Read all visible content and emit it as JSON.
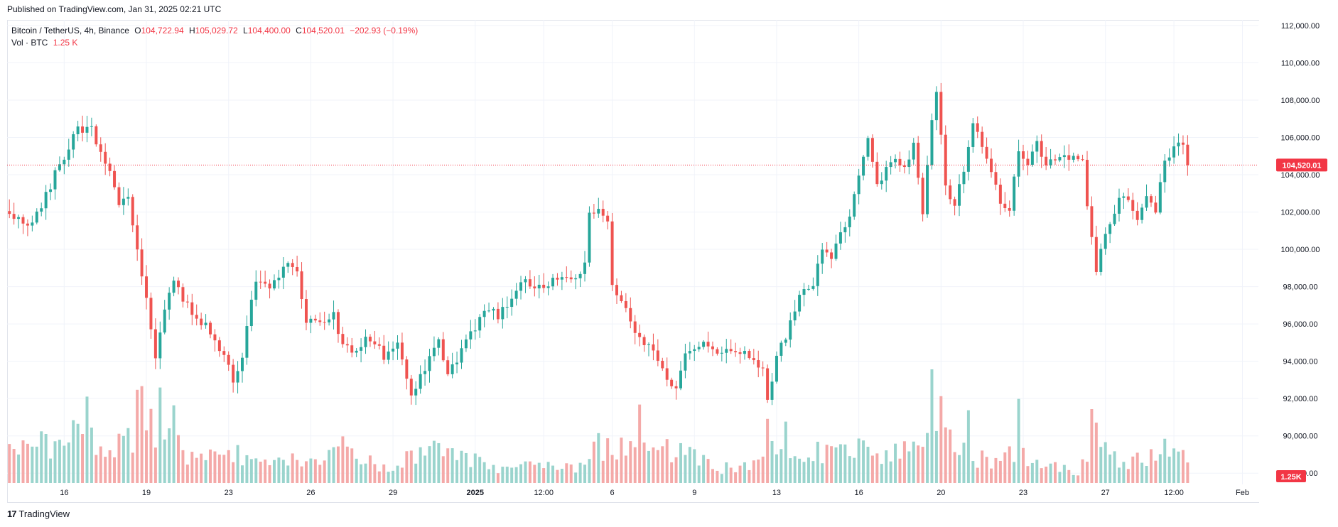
{
  "header": {
    "published": "Published on TradingView.com, Jan 31, 2025 02:21 UTC"
  },
  "legend": {
    "symbol": "Bitcoin / TetherUS, 4h, Binance",
    "o_label": "O",
    "o_value": "104,722.94",
    "h_label": "H",
    "h_value": "105,029.72",
    "l_label": "L",
    "l_value": "104,400.00",
    "c_label": "C",
    "c_value": "104,520.01",
    "change": "−202.93 (−0.19%)",
    "vol_label": "Vol · BTC",
    "vol_value": "1.25 K"
  },
  "footer": {
    "brand": "TradingView",
    "mark": "17"
  },
  "colors": {
    "up": "#26a69a",
    "down": "#ef5350",
    "up_vol": "#9ad4cd",
    "down_vol": "#f4a9a8",
    "grid": "#f0f3fa",
    "price_line": "#f23645"
  },
  "chart_data": {
    "type": "candlestick",
    "interval": "4h",
    "ylim": [
      87400,
      112300
    ],
    "y_ticks": [
      88000,
      90000,
      92000,
      94000,
      96000,
      98000,
      100000,
      102000,
      104000,
      106000,
      108000,
      110000,
      112000
    ],
    "y_tick_labels": [
      "88,000.00",
      "90,000.00",
      "92,000.00",
      "94,000.00",
      "96,000.00",
      "98,000.00",
      "100,000.00",
      "102,000.00",
      "104,000.00",
      "106,000.00",
      "108,000.00",
      "110,000.00",
      "112,000.00"
    ],
    "x_ticks": [
      {
        "index": 12,
        "label": "16"
      },
      {
        "index": 30,
        "label": "19"
      },
      {
        "index": 48,
        "label": "23"
      },
      {
        "index": 66,
        "label": "26"
      },
      {
        "index": 84,
        "label": "29"
      },
      {
        "index": 102,
        "label": "2025"
      },
      {
        "index": 117,
        "label": "12:00"
      },
      {
        "index": 132,
        "label": "6"
      },
      {
        "index": 150,
        "label": "9"
      },
      {
        "index": 168,
        "label": "13"
      },
      {
        "index": 186,
        "label": "16"
      },
      {
        "index": 204,
        "label": "20"
      },
      {
        "index": 222,
        "label": "23"
      },
      {
        "index": 240,
        "label": "27"
      },
      {
        "index": 255,
        "label": "12:00"
      },
      {
        "index": 270,
        "label": "Feb"
      }
    ],
    "last_price": 104520.01,
    "last_price_label": "104,520.01",
    "last_volume_label": "1.25K",
    "anchors": [
      [
        0,
        101900
      ],
      [
        4,
        101200
      ],
      [
        7,
        102300
      ],
      [
        10,
        104000
      ],
      [
        13,
        105400
      ],
      [
        15,
        106500
      ],
      [
        18,
        106400
      ],
      [
        21,
        104800
      ],
      [
        24,
        102500
      ],
      [
        26,
        102900
      ],
      [
        28,
        99800
      ],
      [
        30,
        97400
      ],
      [
        32,
        94200
      ],
      [
        34,
        96800
      ],
      [
        36,
        98200
      ],
      [
        38,
        97400
      ],
      [
        41,
        96400
      ],
      [
        44,
        95600
      ],
      [
        47,
        94100
      ],
      [
        49,
        93100
      ],
      [
        51,
        94300
      ],
      [
        54,
        98500
      ],
      [
        57,
        98100
      ],
      [
        61,
        99100
      ],
      [
        63,
        98700
      ],
      [
        65,
        96300
      ],
      [
        68,
        96000
      ],
      [
        71,
        96400
      ],
      [
        73,
        94800
      ],
      [
        76,
        94600
      ],
      [
        78,
        95200
      ],
      [
        80,
        95100
      ],
      [
        82,
        94200
      ],
      [
        85,
        94800
      ],
      [
        88,
        92300
      ],
      [
        91,
        93700
      ],
      [
        94,
        95300
      ],
      [
        96,
        93100
      ],
      [
        99,
        94600
      ],
      [
        102,
        95800
      ],
      [
        104,
        96900
      ],
      [
        107,
        96400
      ],
      [
        110,
        97500
      ],
      [
        112,
        98400
      ],
      [
        115,
        98000
      ],
      [
        118,
        98200
      ],
      [
        121,
        98300
      ],
      [
        124,
        98400
      ],
      [
        126,
        99400
      ],
      [
        127,
        102000
      ],
      [
        129,
        102100
      ],
      [
        131,
        101400
      ],
      [
        132,
        98000
      ],
      [
        135,
        96700
      ],
      [
        138,
        95200
      ],
      [
        140,
        94800
      ],
      [
        142,
        94000
      ],
      [
        144,
        93200
      ],
      [
        146,
        92300
      ],
      [
        148,
        94300
      ],
      [
        151,
        94900
      ],
      [
        154,
        94700
      ],
      [
        156,
        94500
      ],
      [
        158,
        94700
      ],
      [
        160,
        94500
      ],
      [
        163,
        94100
      ],
      [
        165,
        93400
      ],
      [
        166,
        91800
      ],
      [
        168,
        94400
      ],
      [
        170,
        95400
      ],
      [
        172,
        96800
      ],
      [
        174,
        97900
      ],
      [
        176,
        98200
      ],
      [
        178,
        100200
      ],
      [
        180,
        99500
      ],
      [
        182,
        100800
      ],
      [
        184,
        101800
      ],
      [
        186,
        104000
      ],
      [
        188,
        105800
      ],
      [
        190,
        103300
      ],
      [
        193,
        104800
      ],
      [
        196,
        104300
      ],
      [
        198,
        105800
      ],
      [
        200,
        102000
      ],
      [
        202,
        106900
      ],
      [
        203,
        108400
      ],
      [
        205,
        103500
      ],
      [
        207,
        102300
      ],
      [
        209,
        104400
      ],
      [
        211,
        106800
      ],
      [
        213,
        105300
      ],
      [
        215,
        104300
      ],
      [
        217,
        102600
      ],
      [
        219,
        102300
      ],
      [
        221,
        105200
      ],
      [
        223,
        104300
      ],
      [
        225,
        105700
      ],
      [
        227,
        104500
      ],
      [
        230,
        104900
      ],
      [
        233,
        104900
      ],
      [
        235,
        104900
      ],
      [
        236,
        102500
      ],
      [
        238,
        98600
      ],
      [
        240,
        101000
      ],
      [
        243,
        102700
      ],
      [
        245,
        102700
      ],
      [
        247,
        101700
      ],
      [
        249,
        102800
      ],
      [
        251,
        102000
      ],
      [
        253,
        104800
      ],
      [
        255,
        105500
      ],
      [
        257,
        105500
      ],
      [
        258,
        104500
      ]
    ],
    "volume_anchors": [
      [
        0,
        0.24
      ],
      [
        10,
        0.36
      ],
      [
        15,
        0.66
      ],
      [
        20,
        0.31
      ],
      [
        26,
        0.35
      ],
      [
        29,
        0.62
      ],
      [
        32,
        0.5
      ],
      [
        36,
        0.56
      ],
      [
        38,
        0.22
      ],
      [
        44,
        0.21
      ],
      [
        48,
        0.26
      ],
      [
        52,
        0.21
      ],
      [
        60,
        0.17
      ],
      [
        64,
        0.22
      ],
      [
        68,
        0.18
      ],
      [
        74,
        0.31
      ],
      [
        80,
        0.16
      ],
      [
        86,
        0.17
      ],
      [
        92,
        0.32
      ],
      [
        96,
        0.24
      ],
      [
        100,
        0.2
      ],
      [
        106,
        0.14
      ],
      [
        112,
        0.13
      ],
      [
        118,
        0.14
      ],
      [
        124,
        0.11
      ],
      [
        128,
        0.31
      ],
      [
        132,
        0.3
      ],
      [
        136,
        0.4
      ],
      [
        140,
        0.35
      ],
      [
        144,
        0.28
      ],
      [
        148,
        0.29
      ],
      [
        152,
        0.21
      ],
      [
        156,
        0.14
      ],
      [
        160,
        0.11
      ],
      [
        164,
        0.18
      ],
      [
        166,
        0.4
      ],
      [
        168,
        0.26
      ],
      [
        172,
        0.18
      ],
      [
        176,
        0.26
      ],
      [
        180,
        0.25
      ],
      [
        184,
        0.28
      ],
      [
        188,
        0.3
      ],
      [
        192,
        0.22
      ],
      [
        196,
        0.26
      ],
      [
        200,
        0.27
      ],
      [
        203,
        0.7
      ],
      [
        205,
        0.4
      ],
      [
        208,
        0.31
      ],
      [
        212,
        0.2
      ],
      [
        216,
        0.19
      ],
      [
        220,
        0.29
      ],
      [
        222,
        0.22
      ],
      [
        226,
        0.19
      ],
      [
        230,
        0.11
      ],
      [
        234,
        0.12
      ],
      [
        236,
        0.24
      ],
      [
        238,
        0.46
      ],
      [
        241,
        0.27
      ],
      [
        245,
        0.19
      ],
      [
        249,
        0.19
      ],
      [
        253,
        0.29
      ],
      [
        257,
        0.23
      ],
      [
        258,
        0.14
      ]
    ],
    "volume_spikes": [
      [
        17,
        0.76
      ],
      [
        28,
        0.82
      ],
      [
        33,
        0.84
      ],
      [
        138,
        0.69
      ],
      [
        170,
        0.54
      ],
      [
        202,
        1.0
      ],
      [
        210,
        0.64
      ],
      [
        221,
        0.74
      ],
      [
        237,
        0.65
      ]
    ]
  }
}
